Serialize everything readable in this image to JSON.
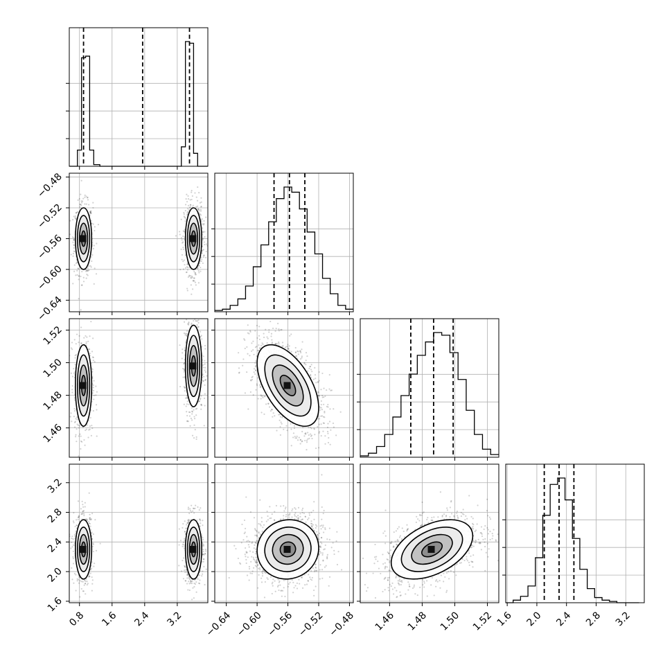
{
  "chart_data": {
    "type": "corner",
    "parameters": [
      {
        "index": 0,
        "center": 0.9,
        "sd": 0.1,
        "weight_low": 0.45,
        "center_b": 3.6,
        "ticks": [
          0.8,
          1.6,
          2.4,
          3.2
        ],
        "tick_labels": [
          "0.8",
          "1.6",
          "2.4",
          "3.2"
        ],
        "range": [
          0.55,
          3.95
        ],
        "quantiles": [
          0.9,
          2.35,
          3.5
        ]
      },
      {
        "index": 1,
        "center": -0.56,
        "sd": 0.02,
        "ticks": [
          -0.64,
          -0.6,
          -0.56,
          -0.52,
          -0.48
        ],
        "tick_labels": [
          "−0.64",
          "−0.60",
          "−0.56",
          "−0.52",
          "−0.48"
        ],
        "range": [
          -0.655,
          -0.475
        ],
        "quantiles": [
          -0.578,
          -0.558,
          -0.538
        ]
      },
      {
        "index": 2,
        "center": 1.486,
        "sd": 0.0125,
        "ticks": [
          1.46,
          1.48,
          1.5,
          1.52
        ],
        "tick_labels": [
          "1.46",
          "1.48",
          "1.50",
          "1.52"
        ],
        "range": [
          1.442,
          1.527
        ],
        "quantiles": [
          1.473,
          1.487,
          1.499
        ]
      },
      {
        "index": 3,
        "center": 2.3,
        "sd": 0.2,
        "ticks": [
          1.6,
          2.0,
          2.4,
          2.8,
          3.2
        ],
        "tick_labels": [
          "1.6",
          "2.0",
          "2.4",
          "2.8",
          "3.2"
        ],
        "range": [
          1.58,
          3.45
        ],
        "quantiles": [
          2.1,
          2.3,
          2.5
        ]
      }
    ],
    "histograms": [
      {
        "param": 0,
        "bins_x": [
          0.55,
          0.75,
          0.85,
          0.95,
          1.05,
          1.15,
          1.3,
          1.5,
          3.3,
          3.4,
          3.5,
          3.6,
          3.7,
          3.95
        ],
        "heights": [
          0.0,
          0.1,
          0.67,
          0.68,
          0.1,
          0.01,
          0.0,
          0.0,
          0.12,
          0.77,
          0.76,
          0.08,
          0.0
        ]
      },
      {
        "param": 1,
        "bins_x": [
          -0.655,
          -0.645,
          -0.635,
          -0.625,
          -0.615,
          -0.605,
          -0.595,
          -0.585,
          -0.575,
          -0.565,
          -0.555,
          -0.545,
          -0.535,
          -0.525,
          -0.515,
          -0.505,
          -0.495,
          -0.485,
          -0.475
        ],
        "heights": [
          0.01,
          0.02,
          0.05,
          0.1,
          0.2,
          0.35,
          0.52,
          0.7,
          0.88,
          0.97,
          0.93,
          0.8,
          0.62,
          0.45,
          0.26,
          0.14,
          0.05,
          0.02
        ]
      },
      {
        "param": 2,
        "bins_x": [
          1.442,
          1.447,
          1.452,
          1.457,
          1.462,
          1.467,
          1.472,
          1.477,
          1.482,
          1.487,
          1.492,
          1.497,
          1.502,
          1.507,
          1.512,
          1.517,
          1.522,
          1.527
        ],
        "heights": [
          0.01,
          0.03,
          0.08,
          0.17,
          0.3,
          0.46,
          0.62,
          0.76,
          0.86,
          0.93,
          0.91,
          0.78,
          0.58,
          0.35,
          0.17,
          0.06,
          0.02
        ]
      },
      {
        "param": 3,
        "bins_x": [
          1.58,
          1.68,
          1.78,
          1.88,
          1.98,
          2.08,
          2.18,
          2.28,
          2.38,
          2.48,
          2.58,
          2.68,
          2.78,
          2.88,
          2.98,
          3.08,
          3.18,
          3.28,
          3.38
        ],
        "heights": [
          0.0,
          0.02,
          0.05,
          0.13,
          0.35,
          0.68,
          0.92,
          0.97,
          0.8,
          0.5,
          0.26,
          0.11,
          0.04,
          0.02,
          0.01,
          0.0,
          0.0,
          0.0
        ]
      }
    ],
    "joint_distributions": [
      {
        "x_param": 0,
        "y_param": 1,
        "corr": 0.0,
        "multimodal_x": true
      },
      {
        "x_param": 0,
        "y_param": 2,
        "corr": 0.0,
        "multimodal_x": true,
        "y_shift_mode_b": 0.012
      },
      {
        "x_param": 1,
        "y_param": 2,
        "corr": -0.55
      },
      {
        "x_param": 0,
        "y_param": 3,
        "corr": 0.0,
        "multimodal_x": true
      },
      {
        "x_param": 1,
        "y_param": 3,
        "corr": 0.05
      },
      {
        "x_param": 2,
        "y_param": 3,
        "corr": 0.45
      }
    ],
    "contour_levels_sigma": [
      0.5,
      1.0,
      1.5,
      2.0
    ],
    "grid": true,
    "colors": {
      "points": "#000000",
      "density": "#000000"
    }
  }
}
